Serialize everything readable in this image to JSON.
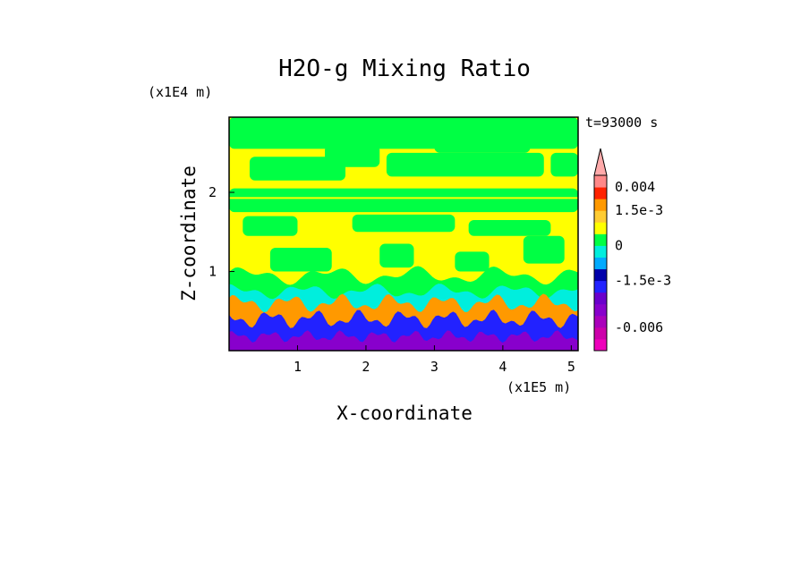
{
  "chart_data": {
    "type": "heatmap",
    "title": "H2O-g Mixing Ratio",
    "xlabel": "X-coordinate",
    "ylabel": "Z-coordinate",
    "x_unit": "(x1E5 m)",
    "y_unit": "(x1E4 m)",
    "time_label": "t=93000 s",
    "xlim": [
      0,
      5.1
    ],
    "ylim": [
      0,
      2.95
    ],
    "x_ticks": [
      {
        "value": 1,
        "label": "1"
      },
      {
        "value": 2,
        "label": "2"
      },
      {
        "value": 3,
        "label": "3"
      },
      {
        "value": 4,
        "label": "4"
      },
      {
        "value": 5,
        "label": "5"
      }
    ],
    "y_ticks": [
      {
        "value": 1,
        "label": "1"
      },
      {
        "value": 2,
        "label": "2"
      }
    ],
    "colorbar": {
      "levels": [
        {
          "value": -0.009,
          "color": "#ee00bb"
        },
        {
          "value": -0.0075,
          "color": "#cc00aa"
        },
        {
          "value": -0.006,
          "color": "#aa00bb"
        },
        {
          "value": -0.0045,
          "color": "#8800cc"
        },
        {
          "value": -0.003,
          "color": "#6a00cc"
        },
        {
          "value": -0.0022,
          "color": "#2222ff"
        },
        {
          "value": -0.0015,
          "color": "#0000aa"
        },
        {
          "value": -0.001,
          "color": "#00aaff"
        },
        {
          "value": -0.0005,
          "color": "#00eedd"
        },
        {
          "value": 0,
          "color": "#00ff44"
        },
        {
          "value": 0.0005,
          "color": "#ffff00"
        },
        {
          "value": 0.001,
          "color": "#ffcc33"
        },
        {
          "value": 0.0015,
          "color": "#ff9900"
        },
        {
          "value": 0.0025,
          "color": "#ff2200"
        },
        {
          "value": 0.004,
          "color": "#ff8888"
        },
        {
          "value": 0.006,
          "color": "#ffaaaa"
        }
      ],
      "labels": [
        {
          "value": 0.004,
          "label": "0.004"
        },
        {
          "value": 0.0015,
          "label": "1.5e-3"
        },
        {
          "value": 0,
          "label": "0"
        },
        {
          "value": -0.0015,
          "label": "-1.5e-3"
        },
        {
          "value": -0.006,
          "label": "-0.006"
        }
      ]
    },
    "field_description_colors": {
      "upper_background": "#ffff00",
      "upper_patches": "#00ff44",
      "band_at_z_1_9": "#00ff44",
      "boundary_layer_cyan": "#00eedd",
      "boundary_layer_orange": "#ff9900",
      "boundary_layer_blue": "#2222ff",
      "boundary_layer_purple": "#8800cc"
    }
  }
}
